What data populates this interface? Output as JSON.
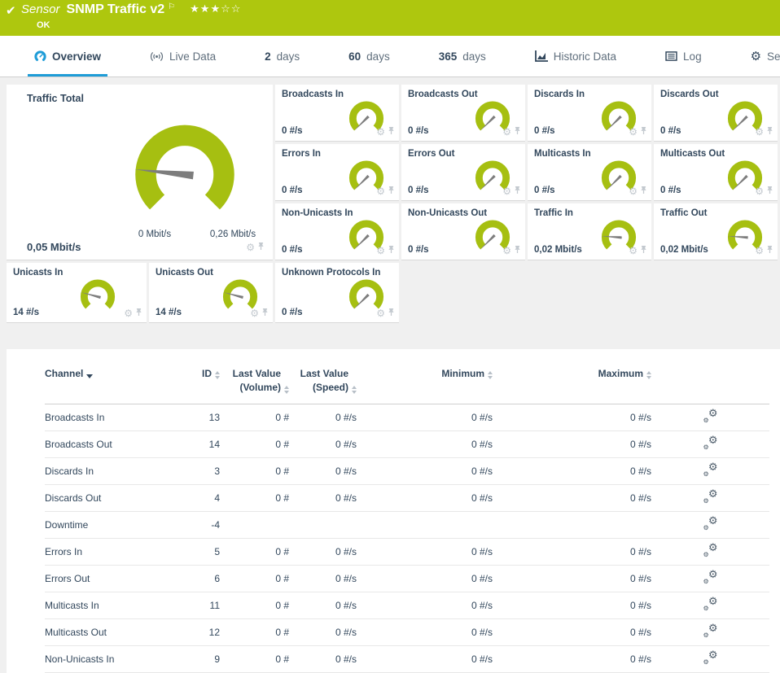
{
  "header": {
    "check": "✔",
    "sensor_label": "Sensor",
    "sensor_name": "SNMP Traffic v2",
    "flag": "⚐",
    "rating_filled": "★★★",
    "rating_empty": "☆☆",
    "status": "OK"
  },
  "tabs": [
    {
      "id": "overview",
      "icon": "gauge-icon",
      "label": "Overview",
      "active": true
    },
    {
      "id": "live-data",
      "icon": "live-data-icon",
      "label": "Live Data"
    },
    {
      "id": "2-days",
      "num": "2",
      "label": "days"
    },
    {
      "id": "60-days",
      "num": "60",
      "label": "days"
    },
    {
      "id": "365-days",
      "num": "365",
      "label": "days"
    },
    {
      "id": "historic-data",
      "icon": "historic-data-icon",
      "label": "Historic Data"
    },
    {
      "id": "log",
      "icon": "log-icon",
      "label": "Log"
    },
    {
      "id": "settings",
      "icon": "settings-icon",
      "label": "Settings"
    }
  ],
  "colors": {
    "header_green": "#aec70e",
    "gauge_green": "#a6bf11",
    "accent_blue": "#1e9cd7",
    "text_navy": "#32475c",
    "needle_gray": "#7d7d7d"
  },
  "gauges": {
    "traffic_total": {
      "title": "Traffic Total",
      "value": "0,05 Mbit/s",
      "scale_min": "0 Mbit/s",
      "scale_max": "0,26 Mbit/s",
      "needle_deg": 6
    },
    "small": [
      {
        "title": "Broadcasts In",
        "value": "0 #/s",
        "needle_deg": -45
      },
      {
        "title": "Broadcasts Out",
        "value": "0 #/s",
        "needle_deg": -45
      },
      {
        "title": "Discards In",
        "value": "0 #/s",
        "needle_deg": -45
      },
      {
        "title": "Discards Out",
        "value": "0 #/s",
        "needle_deg": -45
      },
      {
        "title": "Errors In",
        "value": "0 #/s",
        "needle_deg": -45
      },
      {
        "title": "Errors Out",
        "value": "0 #/s",
        "needle_deg": -45
      },
      {
        "title": "Multicasts In",
        "value": "0 #/s",
        "needle_deg": -45
      },
      {
        "title": "Multicasts Out",
        "value": "0 #/s",
        "needle_deg": -45
      },
      {
        "title": "Non-Unicasts In",
        "value": "0 #/s",
        "needle_deg": -45
      },
      {
        "title": "Non-Unicasts Out",
        "value": "0 #/s",
        "needle_deg": -45
      },
      {
        "title": "Traffic In",
        "value": "0,02 Mbit/s",
        "needle_deg": 4
      },
      {
        "title": "Traffic Out",
        "value": "0,02 Mbit/s",
        "needle_deg": 4
      },
      {
        "title": "Unicasts In",
        "value": "14 #/s",
        "needle_deg": 15
      },
      {
        "title": "Unicasts Out",
        "value": "14 #/s",
        "needle_deg": 15
      },
      {
        "title": "Unknown Protocols In",
        "value": "0 #/s",
        "needle_deg": -45
      }
    ]
  },
  "table": {
    "headers": {
      "channel": "Channel",
      "id": "ID",
      "last_value_volume": "Last Value\n(Volume)",
      "last_value_speed": "Last Value\n(Speed)",
      "minimum": "Minimum",
      "maximum": "Maximum"
    },
    "rows": [
      {
        "channel": "Broadcasts In",
        "id": "13",
        "volume": "0 #",
        "speed": "0 #/s",
        "min": "0 #/s",
        "max": "0 #/s"
      },
      {
        "channel": "Broadcasts Out",
        "id": "14",
        "volume": "0 #",
        "speed": "0 #/s",
        "min": "0 #/s",
        "max": "0 #/s"
      },
      {
        "channel": "Discards In",
        "id": "3",
        "volume": "0 #",
        "speed": "0 #/s",
        "min": "0 #/s",
        "max": "0 #/s"
      },
      {
        "channel": "Discards Out",
        "id": "4",
        "volume": "0 #",
        "speed": "0 #/s",
        "min": "0 #/s",
        "max": "0 #/s"
      },
      {
        "channel": "Downtime",
        "id": "-4",
        "volume": "",
        "speed": "",
        "min": "",
        "max": ""
      },
      {
        "channel": "Errors In",
        "id": "5",
        "volume": "0 #",
        "speed": "0 #/s",
        "min": "0 #/s",
        "max": "0 #/s"
      },
      {
        "channel": "Errors Out",
        "id": "6",
        "volume": "0 #",
        "speed": "0 #/s",
        "min": "0 #/s",
        "max": "0 #/s"
      },
      {
        "channel": "Multicasts In",
        "id": "11",
        "volume": "0 #",
        "speed": "0 #/s",
        "min": "0 #/s",
        "max": "0 #/s"
      },
      {
        "channel": "Multicasts Out",
        "id": "12",
        "volume": "0 #",
        "speed": "0 #/s",
        "min": "0 #/s",
        "max": "0 #/s"
      },
      {
        "channel": "Non-Unicasts In",
        "id": "9",
        "volume": "0 #",
        "speed": "0 #/s",
        "min": "0 #/s",
        "max": "0 #/s"
      }
    ]
  }
}
